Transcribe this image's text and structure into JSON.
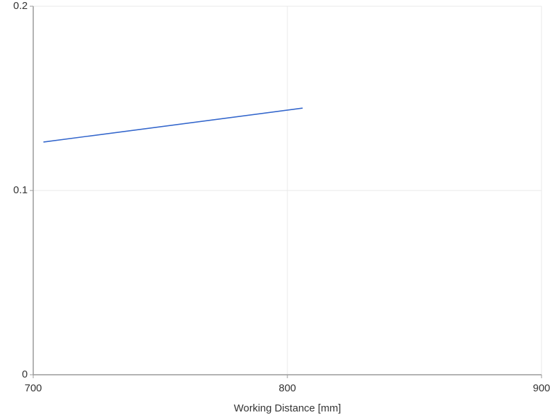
{
  "chart_data": {
    "type": "line",
    "x_label": "Working Distance [mm]",
    "x": [
      704,
      806
    ],
    "values": [
      0.1263,
      0.1447
    ],
    "color": "#3366cc",
    "xlim": [
      700,
      900
    ],
    "xticks": [
      700,
      800,
      900
    ],
    "ylim": [
      0,
      0.2
    ],
    "yticks": [
      0,
      0.1,
      0.2
    ],
    "grid": true
  }
}
